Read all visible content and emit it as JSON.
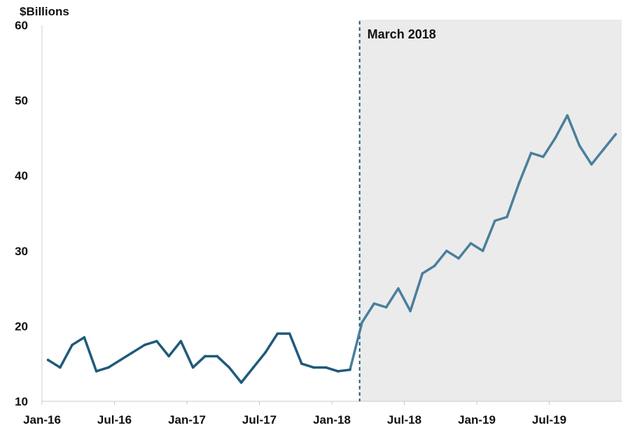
{
  "chart_data": {
    "type": "line",
    "ylabel": "$Billions",
    "ylim": [
      10,
      60
    ],
    "yticks": [
      10,
      20,
      30,
      40,
      50,
      60
    ],
    "xlim": [
      "2016-01",
      "2019-12"
    ],
    "xticks": [
      "Jan-16",
      "Jul-16",
      "Jan-17",
      "Jul-17",
      "Jan-18",
      "Jul-18",
      "Jan-19",
      "Jul-19"
    ],
    "grid": false,
    "annotation": {
      "label": "March 2018",
      "x": "2018-03",
      "style": "dashed vertical line with shaded region to the right"
    },
    "colors": {
      "line_before": "#1f5a7a",
      "line_after": "#4a7f9c",
      "shade": "#ebebeb",
      "marker": "#1f5a7a"
    },
    "series": [
      {
        "x": [
          "2016-01",
          "2016-02",
          "2016-03",
          "2016-04",
          "2016-05",
          "2016-06",
          "2016-07",
          "2016-08",
          "2016-09",
          "2016-10",
          "2016-11",
          "2016-12",
          "2017-01",
          "2017-02",
          "2017-03",
          "2017-04",
          "2017-05",
          "2017-06",
          "2017-07",
          "2017-08",
          "2017-09",
          "2017-10",
          "2017-11",
          "2017-12",
          "2018-01",
          "2018-02",
          "2018-03",
          "2018-04",
          "2018-05",
          "2018-06",
          "2018-07",
          "2018-08",
          "2018-09",
          "2018-10",
          "2018-11",
          "2018-12",
          "2019-01",
          "2019-02",
          "2019-03",
          "2019-04",
          "2019-05",
          "2019-06",
          "2019-07",
          "2019-08",
          "2019-09",
          "2019-10",
          "2019-11",
          "2019-12"
        ],
        "values": [
          15.5,
          14.5,
          17.5,
          18.5,
          14.0,
          14.5,
          15.5,
          16.5,
          17.5,
          18.0,
          16.0,
          18.0,
          14.5,
          16.0,
          16.0,
          14.5,
          12.5,
          14.5,
          16.5,
          19.0,
          19.0,
          15.0,
          14.5,
          14.5,
          14.0,
          14.2,
          20.5,
          23.0,
          22.5,
          25.0,
          22.0,
          27.0,
          28.0,
          30.0,
          29.0,
          31.0,
          30.0,
          34.0,
          34.5,
          39.0,
          43.0,
          42.5,
          45.0,
          48.0,
          44.0,
          41.5,
          43.5,
          45.5
        ]
      }
    ]
  }
}
